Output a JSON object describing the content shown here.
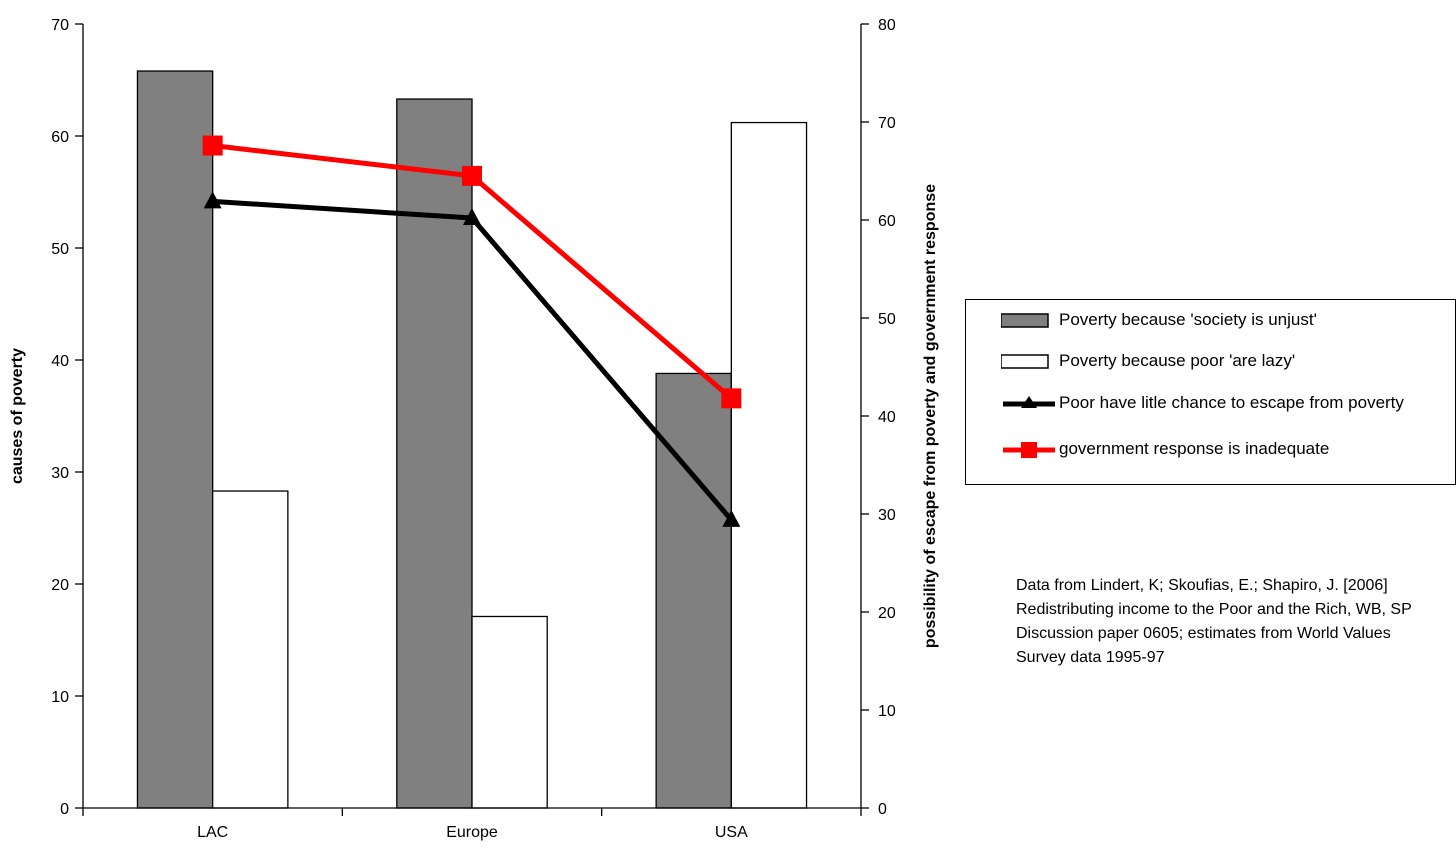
{
  "chart_data": {
    "type": "bar",
    "categories": [
      "LAC",
      "Europe",
      "USA"
    ],
    "series": [
      {
        "name": "Poverty because 'society is unjust'",
        "type": "bar",
        "axis": "left",
        "values": [
          65.8,
          63.3,
          38.8
        ],
        "color": "#808080"
      },
      {
        "name": "Poverty because poor 'are lazy'",
        "type": "bar",
        "axis": "left",
        "values": [
          28.3,
          17.1,
          61.2
        ],
        "color": "#ffffff"
      },
      {
        "name": "Poor have litle chance to escape from poverty",
        "type": "line",
        "axis": "right",
        "marker": "triangle",
        "values": [
          61.9,
          60.2,
          29.4
        ],
        "color": "#000000"
      },
      {
        "name": "government response is inadequate",
        "type": "line",
        "axis": "right",
        "marker": "square",
        "values": [
          67.6,
          64.5,
          41.8
        ],
        "color": "#ff0000"
      }
    ],
    "ylabel": "causes of poverty",
    "ylim": [
      0,
      70
    ],
    "yticks": [
      "0",
      "10",
      "20",
      "30",
      "40",
      "50",
      "60",
      "70"
    ],
    "y2label": "possibility of escape from poverty and government response",
    "y2lim": [
      0,
      80
    ],
    "y2ticks": [
      "0",
      "10",
      "20",
      "30",
      "40",
      "50",
      "60",
      "70",
      "80"
    ],
    "grid": false,
    "legend_position": "right",
    "annotation": "Data from Lindert, K; Skoufias, E.; Shapiro, J. [2006] Redistributing income to the Poor and the Rich, WB, SP Discussion paper 0605; estimates from World Values Survey data 1995-97"
  }
}
